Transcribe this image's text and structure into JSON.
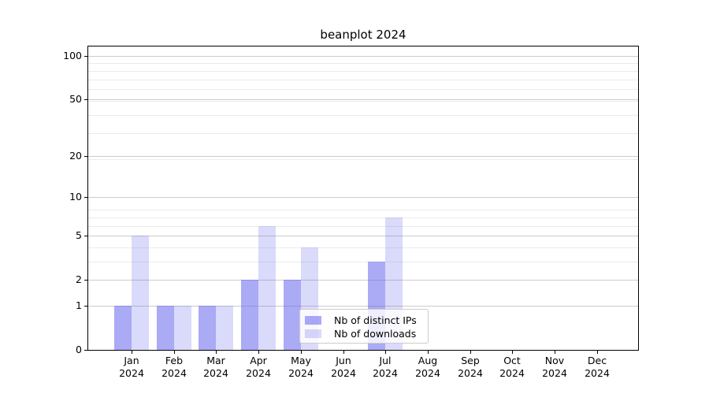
{
  "chart_data": {
    "type": "bar",
    "title": "beanplot 2024",
    "categories": [
      "Jan 2024",
      "Feb 2024",
      "Mar 2024",
      "Apr 2024",
      "May 2024",
      "Jun 2024",
      "Jul 2024",
      "Aug 2024",
      "Sep 2024",
      "Oct 2024",
      "Nov 2024",
      "Dec 2024"
    ],
    "x_tick_month_lines": [
      "Jan",
      "Feb",
      "Mar",
      "Apr",
      "May",
      "Jun",
      "Jul",
      "Aug",
      "Sep",
      "Oct",
      "Nov",
      "Dec"
    ],
    "x_tick_year_line": "2024",
    "series": [
      {
        "name": "Nb of distinct IPs",
        "values": [
          1,
          1,
          1,
          2,
          2,
          0,
          3,
          0,
          0,
          0,
          0,
          0
        ]
      },
      {
        "name": "Nb of downloads",
        "values": [
          5,
          1,
          1,
          6,
          4,
          0,
          7,
          0,
          0,
          0,
          0,
          0
        ]
      }
    ],
    "y_axis": {
      "scale": "log10(1+y)",
      "major_ticks": [
        0,
        1,
        2,
        5,
        10,
        20,
        50,
        100
      ],
      "minor_ticks": [
        3,
        4,
        6,
        7,
        8,
        19,
        29,
        39,
        49,
        59,
        69,
        79,
        89
      ],
      "range": [
        0,
        116
      ]
    },
    "grid": "horizontal major+minor",
    "legend_position": "lower center"
  },
  "colors": {
    "bar_distinct_ips": "rgba(85,85,235,0.50)",
    "bar_downloads": "rgba(85,85,235,0.22)",
    "grid_major": "#cccccc",
    "grid_minor": "#ebebeb",
    "axis": "#000000"
  }
}
